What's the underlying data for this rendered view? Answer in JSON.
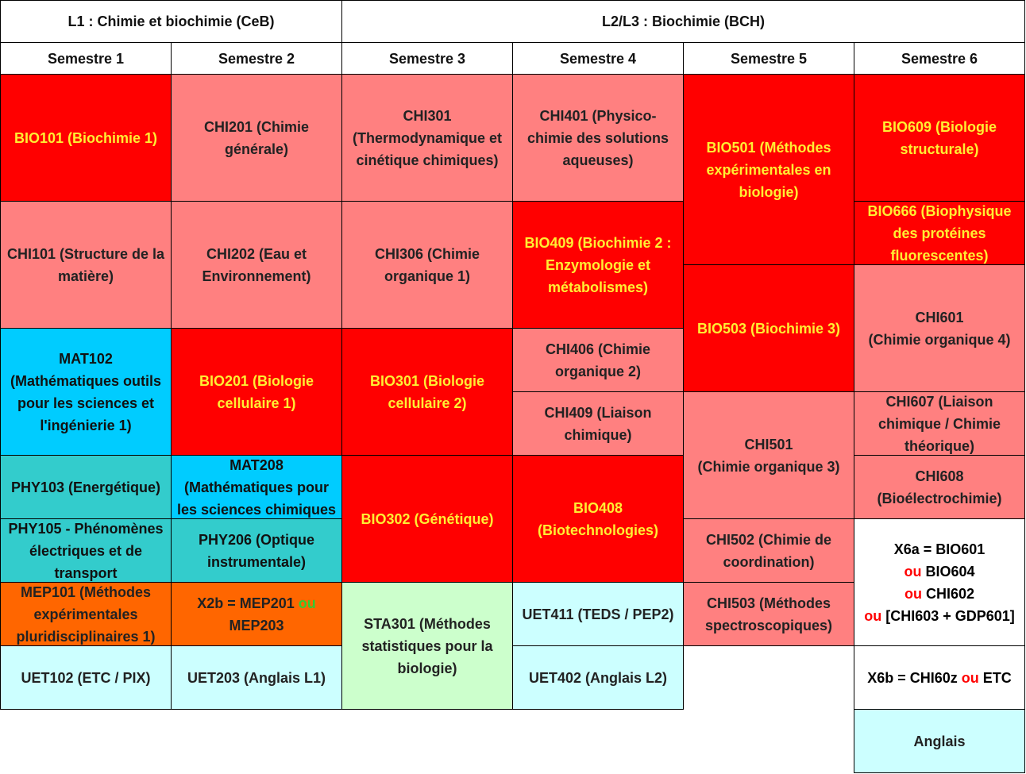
{
  "headers": {
    "l1": "L1 : Chimie et biochimie (CeB)",
    "l23": "L2/L3 : Biochimie (BCH)",
    "semesters": [
      "Semestre 1",
      "Semestre 2",
      "Semestre 3",
      "Semestre 4",
      "Semestre 5",
      "Semestre 6"
    ]
  },
  "courses": {
    "bio101": "BIO101 (Biochimie 1)",
    "chi101": "CHI101 (Structure de la\nmatière)",
    "mat102": "MAT102\n(Mathématiques outils\npour les sciences et\nl'ingénierie 1)",
    "phy103": "PHY103 (Energétique)",
    "phy105": "PHY105 - Phénomènes\nélectriques et de\ntransport",
    "mep101": "MEP101 (Méthodes\nexpérimentales\npluridisciplinaires 1)",
    "uet102": "UET102 (ETC / PIX)",
    "chi201": "CHI201 (Chimie\ngénérale)",
    "chi202": "CHI202 (Eau et\nEnvironnement)",
    "bio201": "BIO201 (Biologie\ncellulaire 1)",
    "mat208": "MAT208\n(Mathématiques pour\nles sciences chimiques",
    "phy206": "PHY206 (Optique\ninstrumentale)",
    "x2b_a": "X2b = MEP201 ",
    "x2b_ou": "ou",
    "x2b_b": "MEP203",
    "uet203": "UET203 (Anglais L1)",
    "chi301": "CHI301\n(Thermodynamique et\ncinétique chimiques)",
    "chi306": "CHI306 (Chimie\norganique 1)",
    "bio301": "BIO301 (Biologie\ncellulaire 2)",
    "bio302": "BIO302 (Génétique)",
    "sta301": "STA301 (Méthodes\nstatistiques pour la\nbiologie)",
    "chi401": "CHI401 (Physico-\nchimie des solutions\naqueuses)",
    "bio409": "BIO409 (Biochimie 2 :\nEnzymologie et\nmétabolismes)",
    "chi406": "CHI406 (Chimie\norganique 2)",
    "chi409": "CHI409 (Liaison\nchimique)",
    "bio408": "BIO408\n(Biotechnologies)",
    "uet411": "UET411 (TEDS / PEP2)",
    "uet402": "UET402 (Anglais L2)",
    "bio501": "BIO501 (Méthodes\nexpérimentales en\nbiologie)",
    "bio503": "BIO503 (Biochimie 3)",
    "chi501": "CHI501\n(Chimie organique 3)",
    "chi502": "CHI502 (Chimie de\ncoordination)",
    "chi503": "CHI503 (Méthodes\nspectroscopiques)",
    "bio609": "BIO609 (Biologie\nstructurale)",
    "bio666": "BIO666 (Biophysique\ndes protéines\nfluorescentes)",
    "chi601": "CHI601\n(Chimie organique 4)",
    "chi607": "CHI607 (Liaison\nchimique / Chimie\nthéorique)",
    "chi608": "CHI608\n(Bioélectrochimie)",
    "x6a_line1": "X6a = BIO601",
    "x6a_ou": "ou",
    "x6a_line2": " BIO604",
    "x6a_line3": " CHI602",
    "x6a_line4": " [CHI603 + GDP601]",
    "x6b_a": "X6b = CHI60z ",
    "x6b_ou": "ou",
    "x6b_b": " ETC",
    "anglais": "Anglais"
  },
  "colors": {
    "red": "#ff0000",
    "pink": "#ff8080",
    "blue": "#00ccff",
    "teal": "#33cccc",
    "orange": "#ff6600",
    "cyan": "#ccffff",
    "green": "#ccffcc",
    "yellow_text": "#ffee33"
  }
}
